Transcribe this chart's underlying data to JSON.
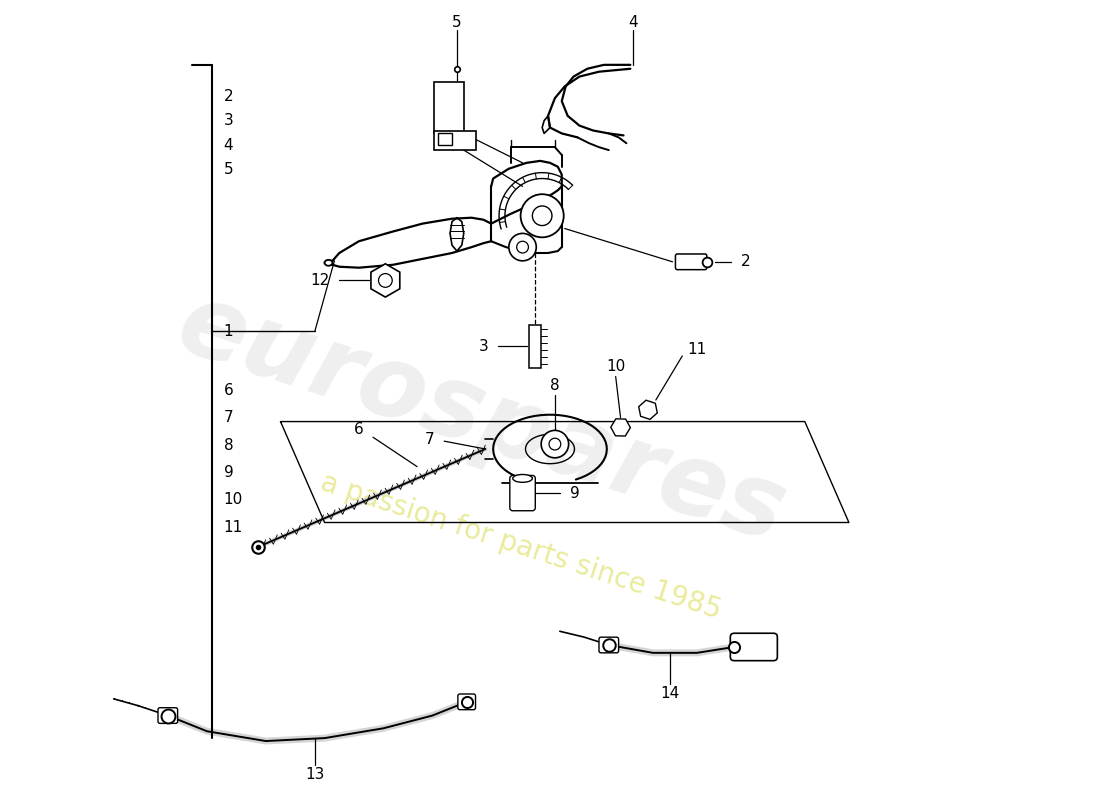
{
  "bg_color": "#ffffff",
  "lc": "#000000",
  "font_size": 11,
  "watermark1": "eurospares",
  "watermark2": "a passion for parts since 1985"
}
